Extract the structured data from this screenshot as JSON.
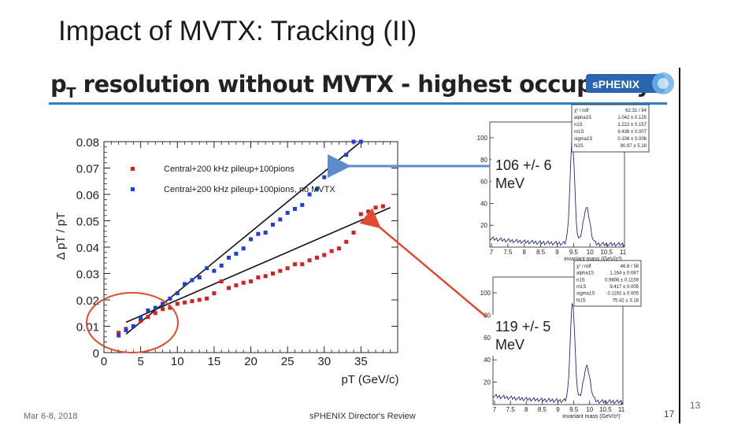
{
  "slide": {
    "title": "Impact of MVTX: Tracking (II)",
    "banner_title": "pT resolution without MVTX - highest occupancy",
    "banner_title_main": "p",
    "banner_title_sub": "T",
    "banner_title_rest": " resolution without MVTX - highest occupancy",
    "logo_text": "sPHENIX",
    "footer_date": "Mar 6-8, 2018",
    "footer_review": "sPHENIX Director's Review",
    "page_inner": "17",
    "page_outer": "13"
  },
  "colors": {
    "red": "#d42020",
    "blue": "#1f3fd6",
    "arrow_blue": "#5b8ccc",
    "arrow_red": "#e04a30",
    "banner_rule": "#2f7fc1"
  },
  "chart_data": [
    {
      "type": "scatter",
      "ylabel": "Δ pT / pT",
      "xlabel": "pT (GeV/c)",
      "xlim": [
        0,
        40
      ],
      "ylim": [
        0,
        0.08
      ],
      "xticks": [
        "0",
        "5",
        "10",
        "15",
        "20",
        "25",
        "30",
        "35"
      ],
      "yticks": [
        "0",
        "0.01",
        "0.02",
        "0.03",
        "0.04",
        "0.05",
        "0.06",
        "0.07",
        "0.08"
      ],
      "legend": [
        "Central+200 kHz pileup+100pions",
        "Central+200 kHz pileup+100pions, no MVTX"
      ],
      "series": [
        {
          "name": "Central+200 kHz pileup+100pions",
          "color": "red",
          "x": [
            2,
            3,
            4,
            5,
            6,
            7,
            8,
            9,
            10,
            11,
            12,
            13,
            14,
            15,
            16,
            17,
            18,
            19,
            20,
            21,
            22,
            23,
            24,
            25,
            26,
            27,
            28,
            29,
            30,
            31,
            32,
            33,
            34,
            35,
            36,
            37,
            38
          ],
          "y": [
            0.0075,
            0.009,
            0.01,
            0.012,
            0.0135,
            0.015,
            0.0165,
            0.017,
            0.0185,
            0.019,
            0.0195,
            0.02,
            0.0205,
            0.0225,
            0.027,
            0.0245,
            0.0255,
            0.0265,
            0.027,
            0.0285,
            0.029,
            0.03,
            0.031,
            0.032,
            0.0335,
            0.0335,
            0.035,
            0.036,
            0.037,
            0.0385,
            0.0395,
            0.042,
            0.0455,
            0.0525,
            0.0535,
            0.055,
            0.0555
          ]
        },
        {
          "name": "Central+200 kHz pileup+100pions, no MVTX",
          "color": "blue",
          "x": [
            2,
            3,
            4,
            5,
            6,
            7,
            8,
            9,
            10,
            11,
            12,
            13,
            14,
            15,
            16,
            17,
            18,
            19,
            20,
            21,
            22,
            23,
            24,
            25,
            26,
            27,
            28,
            29,
            30,
            31,
            32,
            33,
            34,
            35
          ],
          "y": [
            0.0065,
            0.0085,
            0.01,
            0.013,
            0.016,
            0.017,
            0.0185,
            0.0205,
            0.0225,
            0.026,
            0.0275,
            0.0285,
            0.032,
            0.031,
            0.033,
            0.036,
            0.0375,
            0.0395,
            0.043,
            0.045,
            0.0455,
            0.0485,
            0.0505,
            0.053,
            0.0545,
            0.056,
            0.06,
            0.062,
            0.0665,
            0.0705,
            0.071,
            0.075,
            0.08,
            0.08
          ]
        }
      ],
      "fits": [
        {
          "color": "red",
          "x": [
            3,
            39
          ],
          "y": [
            0.0115,
            0.055
          ]
        },
        {
          "color": "blue",
          "x": [
            3,
            35
          ],
          "y": [
            0.007,
            0.08
          ]
        }
      ],
      "annotations": [
        "106 +/- 6 MeV",
        "119 +/- 5 MeV"
      ]
    },
    {
      "type": "histogram",
      "name": "inset-top",
      "xlabel": "invariant mass (GeV/c²)",
      "xticks": [
        "7",
        "7.5",
        "8",
        "8.5",
        "9",
        "9.5",
        "10",
        "10.5",
        "11"
      ],
      "yticks": [
        "100",
        "80",
        "60",
        "40",
        "20"
      ],
      "stats": [
        [
          "χ² / ndf",
          "62.31 / 64"
        ],
        [
          "alpha1S",
          "1.042 ± 0.125"
        ],
        [
          "n1S",
          "1.222 ± 0.157"
        ],
        [
          "m1S",
          "9.436 ± 0.007"
        ],
        [
          "sigma1S",
          "0.106 ± 0.006"
        ],
        [
          "N1S",
          "90.97 ± 5.18"
        ]
      ]
    },
    {
      "type": "histogram",
      "name": "inset-bottom",
      "xlabel": "invariant mass (GeV/c²)",
      "xticks": [
        "7",
        "7.5",
        "8",
        "8.5",
        "9",
        "9.5",
        "10",
        "10.5",
        "11"
      ],
      "yticks": [
        "100",
        "80",
        "60",
        "40",
        "20"
      ],
      "stats": [
        [
          "χ² / ndf",
          "46.8 / 58"
        ],
        [
          "alpha1S",
          "1.164 ± 0.087"
        ],
        [
          "n1S",
          "0.9806 ± 0.1159"
        ],
        [
          "m1S",
          "9.417 ± 0.005"
        ],
        [
          "sigma1S",
          "0.1192 ± 0.005"
        ],
        [
          "N1S",
          "75.42 ± 3.18"
        ]
      ]
    }
  ]
}
